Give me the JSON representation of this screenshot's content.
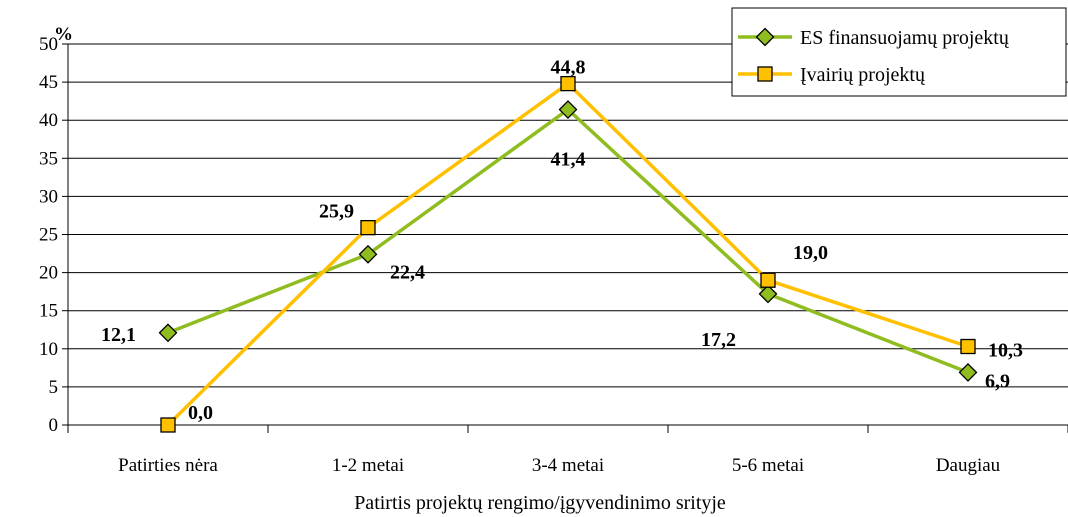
{
  "chart_data": {
    "type": "line",
    "categories": [
      "Patirties nėra",
      "1-2 metai",
      "3-4 metai",
      "5-6 metai",
      "Daugiau"
    ],
    "series": [
      {
        "name": "ES finansuojamų projektų",
        "values": [
          12.1,
          22.4,
          41.4,
          17.2,
          6.9
        ],
        "value_labels": [
          "12,1",
          "22,4",
          "41,4",
          "17,2",
          "6,9"
        ],
        "color": "#8fbc1f",
        "marker": "diamond"
      },
      {
        "name": "Įvairių projektų",
        "values": [
          0.0,
          25.9,
          44.8,
          19.0,
          10.3
        ],
        "value_labels": [
          "0,0",
          "25,9",
          "44,8",
          "19,0",
          "10,3"
        ],
        "color": "#ffc000",
        "marker": "square"
      }
    ],
    "y_unit": "%",
    "xlabel": "Patirtis projektų rengimo/įgyvendinimo srityje",
    "ylim": [
      0,
      50
    ],
    "yticks": [
      0,
      5,
      10,
      15,
      20,
      25,
      30,
      35,
      40,
      45,
      50
    ],
    "grid": true,
    "legend_position": "top-right"
  }
}
